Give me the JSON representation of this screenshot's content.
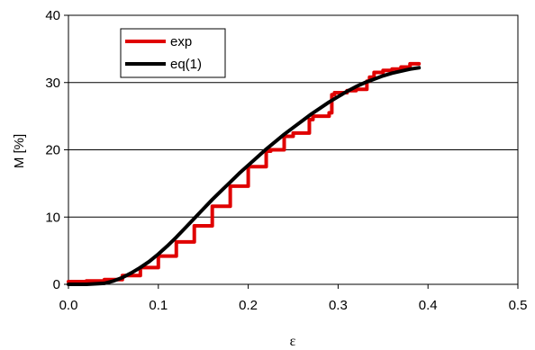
{
  "chart_data": {
    "type": "line",
    "xlabel": "ε",
    "ylabel": "M [%]",
    "xlim": [
      0,
      0.5
    ],
    "ylim": [
      0,
      40
    ],
    "x_ticks": [
      "0.0",
      "0.1",
      "0.2",
      "0.3",
      "0.4",
      "0.5"
    ],
    "y_ticks": [
      "0",
      "10",
      "20",
      "30",
      "40"
    ],
    "grid": "horizontal",
    "legend_position": "top-left",
    "series": [
      {
        "name": "exp",
        "color": "#e00000",
        "x": [
          0.0,
          0.02,
          0.04,
          0.06,
          0.08,
          0.1,
          0.12,
          0.14,
          0.16,
          0.18,
          0.2,
          0.22,
          0.225,
          0.235,
          0.24,
          0.245,
          0.25,
          0.255,
          0.265,
          0.268,
          0.272,
          0.28,
          0.29,
          0.293,
          0.296,
          0.3,
          0.31,
          0.32,
          0.33,
          0.332,
          0.335,
          0.34,
          0.35,
          0.36,
          0.37,
          0.38,
          0.39
        ],
        "y": [
          0.4,
          0.5,
          0.7,
          1.3,
          2.5,
          4.2,
          6.3,
          8.7,
          11.6,
          14.6,
          17.5,
          19.8,
          20.0,
          20.0,
          22.0,
          22.0,
          22.5,
          22.5,
          22.5,
          24.5,
          25.0,
          25.0,
          25.5,
          28.2,
          28.5,
          28.5,
          28.8,
          29.0,
          29.0,
          30.2,
          30.8,
          31.5,
          31.8,
          32.0,
          32.3,
          32.8,
          32.8
        ]
      },
      {
        "name": "eq(1)",
        "color": "#000000",
        "x": [
          0.0,
          0.02,
          0.04,
          0.05,
          0.06,
          0.07,
          0.08,
          0.09,
          0.1,
          0.11,
          0.12,
          0.13,
          0.14,
          0.15,
          0.16,
          0.17,
          0.18,
          0.19,
          0.2,
          0.21,
          0.22,
          0.23,
          0.24,
          0.25,
          0.26,
          0.27,
          0.28,
          0.29,
          0.3,
          0.31,
          0.32,
          0.33,
          0.34,
          0.35,
          0.36,
          0.37,
          0.38,
          0.39
        ],
        "y": [
          0.0,
          0.0,
          0.15,
          0.5,
          1.0,
          1.7,
          2.5,
          3.4,
          4.5,
          5.7,
          7.0,
          8.4,
          9.8,
          11.2,
          12.6,
          13.9,
          15.2,
          16.5,
          17.7,
          18.9,
          20.1,
          21.2,
          22.3,
          23.3,
          24.3,
          25.3,
          26.2,
          27.1,
          27.9,
          28.7,
          29.4,
          30.0,
          30.5,
          31.0,
          31.4,
          31.7,
          32.0,
          32.2
        ]
      }
    ]
  }
}
